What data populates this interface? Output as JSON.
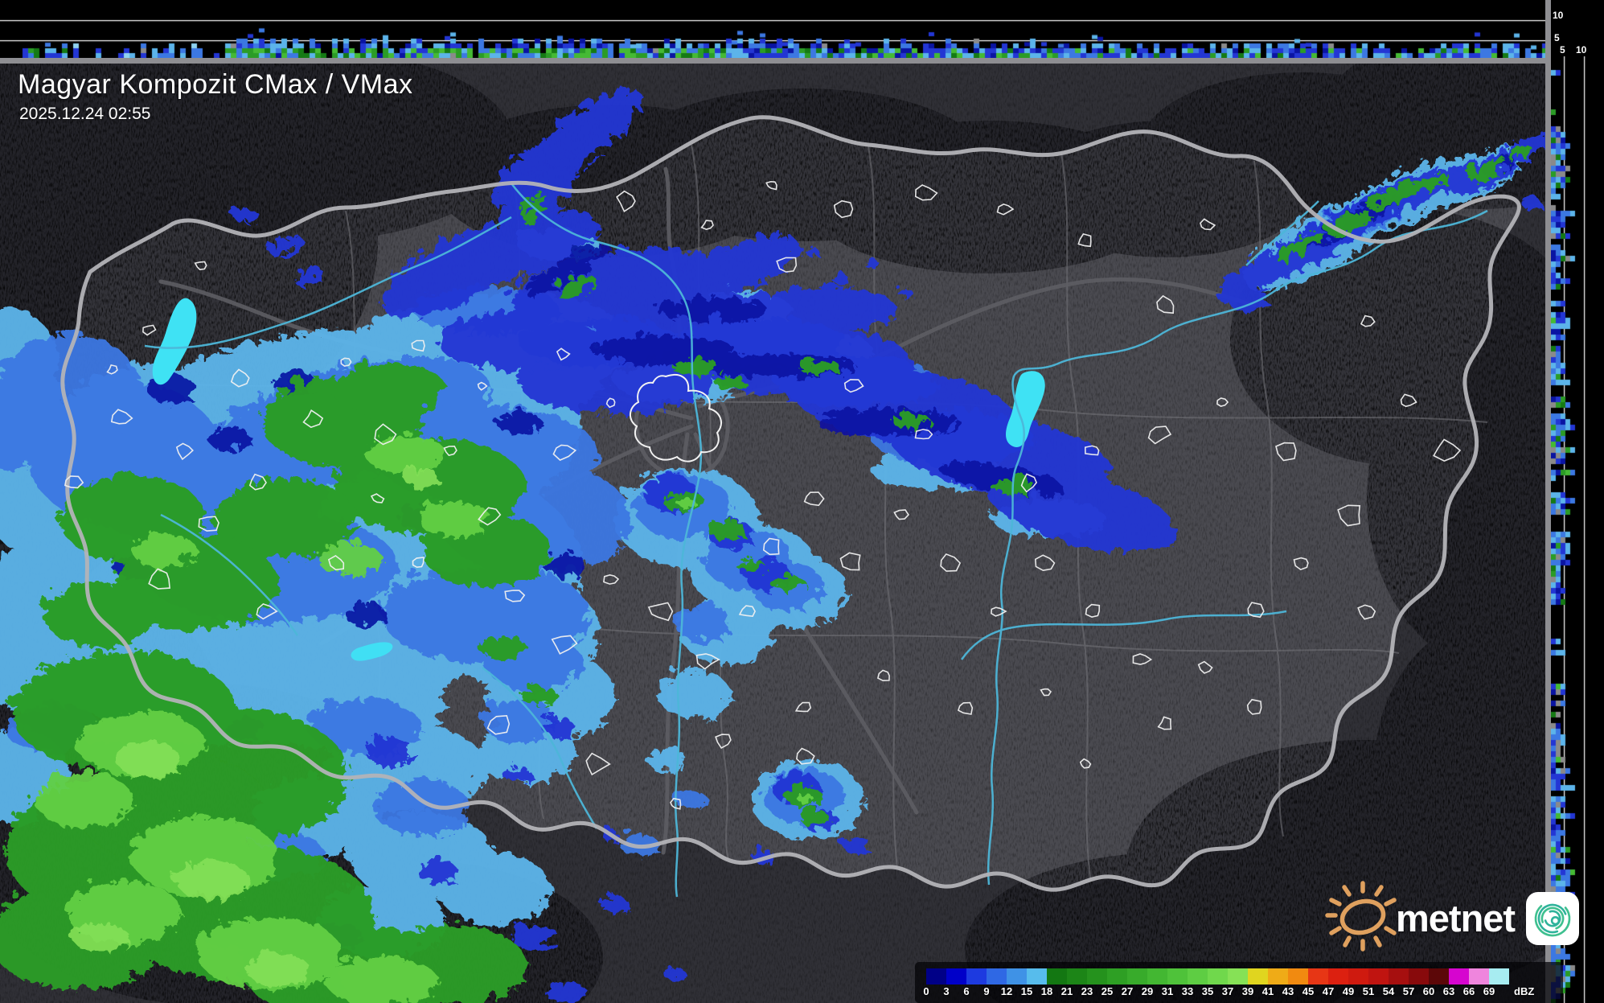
{
  "header": {
    "title": "Magyar Kompozit CMax / VMax",
    "timestamp": "2025.12.24 02:55"
  },
  "legend": {
    "unit": "dBZ",
    "labels": [
      "0",
      "3",
      "6",
      "9",
      "12",
      "15",
      "18",
      "21",
      "23",
      "25",
      "27",
      "29",
      "31",
      "33",
      "35",
      "37",
      "39",
      "41",
      "43",
      "45",
      "47",
      "49",
      "51",
      "54",
      "57",
      "60",
      "63",
      "66",
      "69"
    ],
    "cell_colors": [
      "#000087",
      "#0000c9",
      "#1d3ae0",
      "#2f68e4",
      "#3f92e6",
      "#57bcec",
      "#137712",
      "#1c8517",
      "#25921d",
      "#2e9f24",
      "#38ab2b",
      "#43b732",
      "#4fc23a",
      "#5ecd43",
      "#70d84c",
      "#86e156",
      "#e0d51f",
      "#efab17",
      "#f18a10",
      "#e73615",
      "#dc2010",
      "#cf1a0f",
      "#c01410",
      "#a60f0f",
      "#880a0c",
      "#5c0708",
      "#d605cf",
      "#ef85dd",
      "#a7ecf1"
    ]
  },
  "axes": {
    "top_strip_height_ticks": [
      "10",
      "5"
    ],
    "right_strip_height_ticks": [
      "5",
      "10"
    ]
  },
  "branding": {
    "logo_text": "metnet"
  },
  "colors": {
    "map_inside": "#4a4a50",
    "map_outside": "#303036",
    "country_border": "#b3b3b7",
    "county_border": "#75757a",
    "road": "#5d5d63",
    "river": "#4db6d8",
    "lake": "#3fe2f4",
    "settlement_outline": "#f0f0f0",
    "logo_sun": "#dfa05e",
    "logo_spiral": "#35b79b"
  }
}
